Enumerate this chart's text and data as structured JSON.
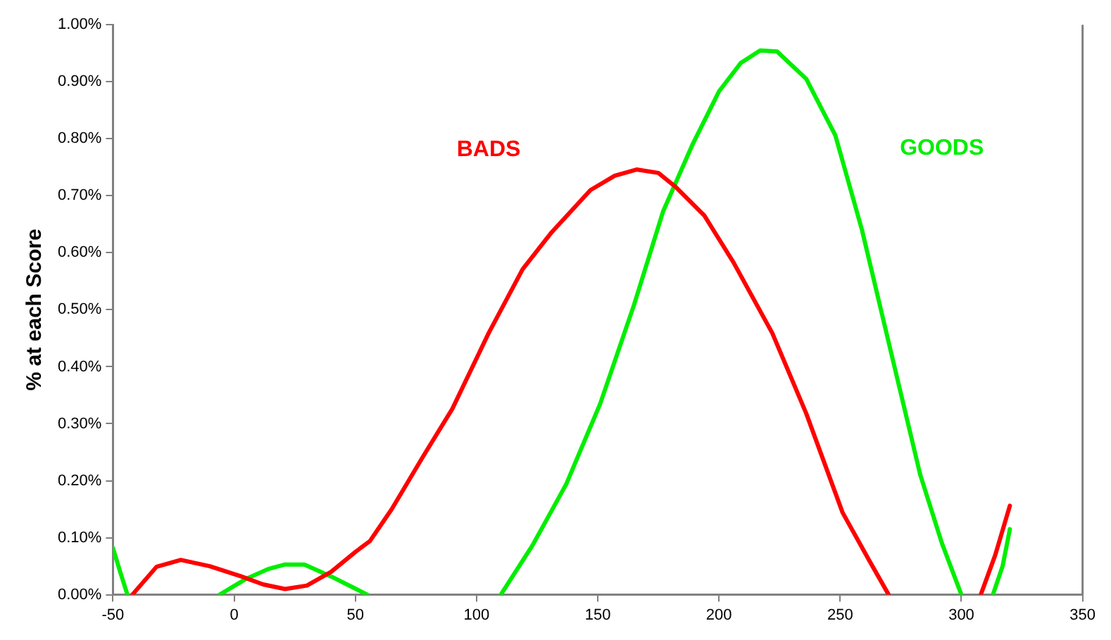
{
  "chart_data": {
    "type": "line",
    "ylabel": "% at each Score",
    "xlim": [
      -50,
      350
    ],
    "xticks": [
      -50,
      0,
      50,
      100,
      150,
      200,
      250,
      300,
      350
    ],
    "ylim": [
      0,
      1
    ],
    "yticks": [
      {
        "value": 0,
        "label": "0.00%"
      },
      {
        "value": 0.1,
        "label": "0.10%"
      },
      {
        "value": 0.2,
        "label": "0.20%"
      },
      {
        "value": 0.3,
        "label": "0.30%"
      },
      {
        "value": 0.4,
        "label": "0.40%"
      },
      {
        "value": 0.5,
        "label": "0.50%"
      },
      {
        "value": 0.6,
        "label": "0.60%"
      },
      {
        "value": 0.7,
        "label": "0.70%"
      },
      {
        "value": 0.8,
        "label": "0.80%"
      },
      {
        "value": 0.9,
        "label": "0.90%"
      },
      {
        "value": 1,
        "label": "1.00%"
      }
    ],
    "grid": false,
    "legend": false,
    "marker": "none",
    "line_style": "solid",
    "series": [
      {
        "name": "BADS",
        "color": "#ff0000",
        "x": [
          -42,
          -32,
          -22,
          -10,
          3,
          12,
          21,
          30,
          40,
          50,
          56,
          65,
          72,
          78,
          90,
          105,
          119,
          131,
          147,
          157,
          166,
          175,
          182,
          194,
          206,
          222,
          236,
          251,
          262,
          270,
          280,
          308,
          314,
          320
        ],
        "values": [
          0,
          0.049,
          0.061,
          0.05,
          0.032,
          0.018,
          0.01,
          0.016,
          0.04,
          0.075,
          0.094,
          0.15,
          0.2,
          0.243,
          0.326,
          0.459,
          0.571,
          0.636,
          0.71,
          0.735,
          0.746,
          0.74,
          0.716,
          0.665,
          0.583,
          0.459,
          0.318,
          0.144,
          0.06,
          0,
          null,
          0,
          0.07,
          0.156
        ]
      },
      {
        "name": "GOODS",
        "color": "#00ee00",
        "x": [
          -50,
          -47,
          -44,
          -20,
          -6,
          5,
          14,
          21,
          29,
          40,
          48,
          55,
          80,
          110,
          123,
          137,
          151,
          165,
          177,
          189,
          200,
          209,
          217,
          224,
          236,
          248,
          259,
          271,
          283,
          292,
          300,
          307,
          313,
          317,
          320
        ],
        "values": [
          0.082,
          0.04,
          0,
          null,
          0,
          0.028,
          0.045,
          0.053,
          0.053,
          0.032,
          0.015,
          0,
          null,
          0,
          0.086,
          0.194,
          0.335,
          0.509,
          0.673,
          0.789,
          0.883,
          0.933,
          0.955,
          0.953,
          0.905,
          0.806,
          0.64,
          0.425,
          0.211,
          0.09,
          0,
          null,
          0,
          0.05,
          0.115
        ]
      }
    ]
  }
}
